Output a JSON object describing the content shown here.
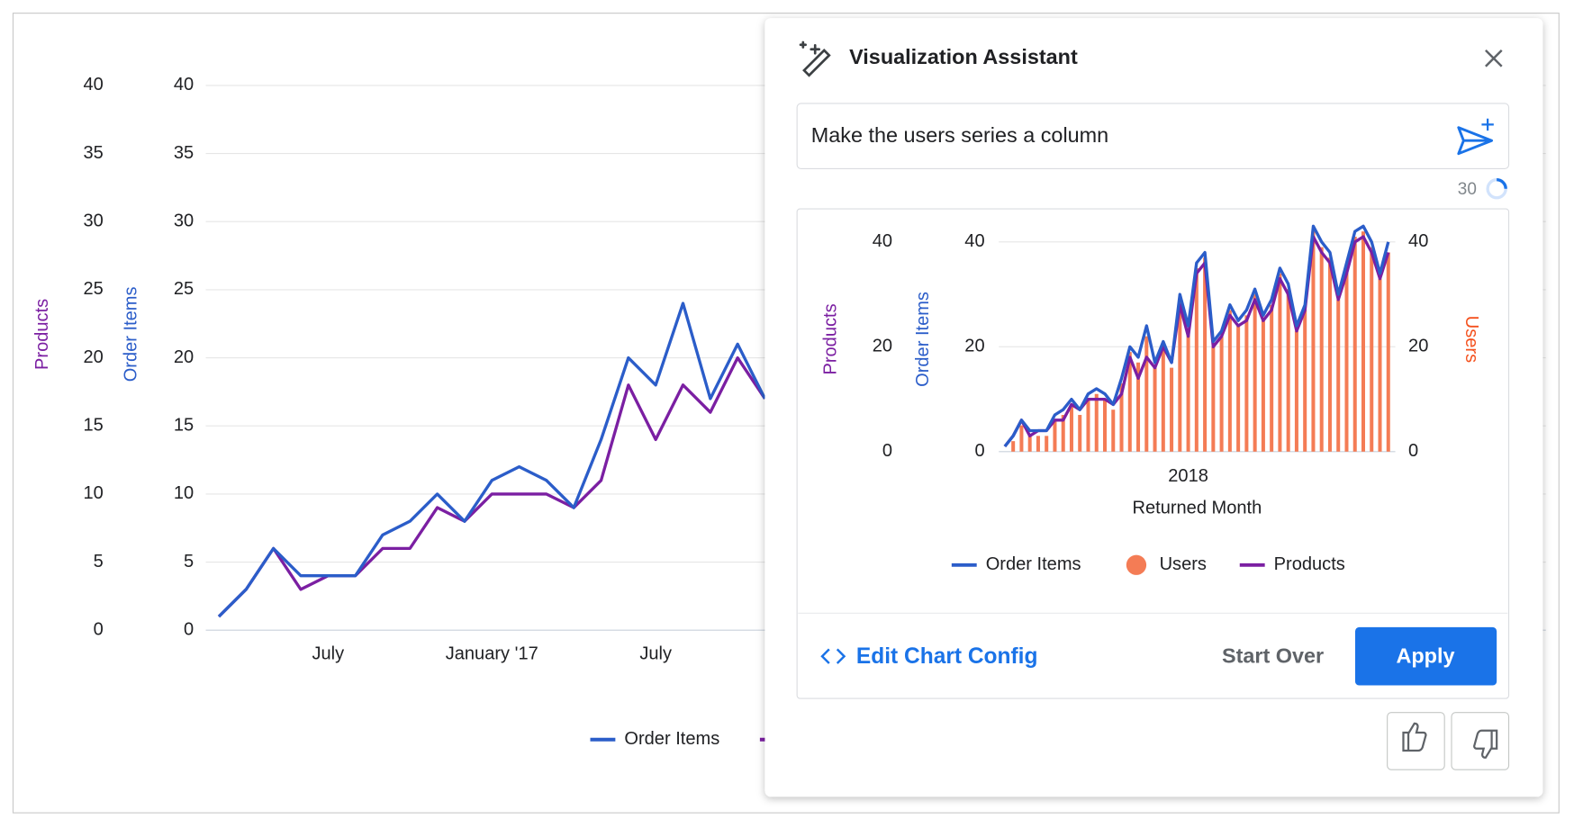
{
  "chart_data": [
    {
      "type": "line",
      "categories": [
        null,
        null,
        null,
        null,
        "July",
        null,
        null,
        null,
        null,
        null,
        "January '17",
        null,
        null,
        null,
        null,
        null,
        "July",
        null,
        null,
        null,
        null
      ],
      "y_label": "Order Items",
      "y2_label": "Products",
      "series": [
        {
          "name": "Order Items",
          "color": "#2b5dc9",
          "values": [
            1,
            3,
            6,
            4,
            4,
            4,
            7,
            8,
            10,
            8,
            11,
            12,
            11,
            9,
            14,
            20,
            18,
            24,
            17,
            21,
            17
          ]
        },
        {
          "name": "Products",
          "color": "#7b1fa2",
          "axis": "y2",
          "values": [
            1,
            3,
            6,
            3,
            4,
            4,
            6,
            6,
            9,
            8,
            10,
            10,
            10,
            9,
            11,
            18,
            14,
            18,
            16,
            20,
            17
          ]
        }
      ],
      "ylim": [
        0,
        40
      ],
      "yticks": [
        0,
        5,
        10,
        15,
        20,
        25,
        30,
        35,
        40
      ],
      "y2lim": [
        0,
        40
      ],
      "y2ticks": [
        0,
        5,
        10,
        15,
        20,
        25,
        30,
        35,
        40
      ],
      "grid": true
    },
    {
      "type": "combo",
      "x_label": "Returned Month",
      "categories": [
        null,
        null,
        null,
        null,
        null,
        null,
        null,
        null,
        null,
        null,
        null,
        null,
        null,
        null,
        null,
        null,
        null,
        null,
        null,
        null,
        null,
        null,
        "2018",
        null,
        null,
        null,
        null,
        null,
        null,
        null,
        null,
        null,
        null,
        null,
        null,
        null,
        null,
        null,
        null,
        null,
        null,
        null,
        null,
        null,
        null,
        null,
        null
      ],
      "y_label": "Order Items",
      "y2_label": "Users",
      "y3_label": "Products",
      "series": [
        {
          "name": "Order Items",
          "type": "line",
          "color": "#2b5dc9",
          "values": [
            1,
            3,
            6,
            4,
            4,
            4,
            7,
            8,
            10,
            8,
            11,
            12,
            11,
            9,
            14,
            20,
            18,
            24,
            17,
            21,
            17,
            30,
            24,
            36,
            38,
            21,
            23,
            28,
            25,
            27,
            31,
            26,
            29,
            35,
            32,
            24,
            28,
            43,
            40,
            38,
            30,
            36,
            42,
            43,
            40,
            34,
            40
          ]
        },
        {
          "name": "Users",
          "type": "bar",
          "color": "#f47c55",
          "axis": "y2",
          "values": [
            0,
            2,
            5,
            3,
            3,
            3,
            6,
            7,
            9,
            7,
            10,
            11,
            10,
            8,
            13,
            19,
            17,
            22,
            16,
            20,
            16,
            29,
            23,
            35,
            37,
            20,
            22,
            27,
            24,
            26,
            30,
            25,
            28,
            34,
            31,
            23,
            27,
            42,
            39,
            37,
            29,
            35,
            41,
            42,
            39,
            33,
            38
          ]
        },
        {
          "name": "Products",
          "type": "line",
          "color": "#7b1fa2",
          "axis": "y3",
          "values": [
            1,
            3,
            6,
            3,
            4,
            4,
            6,
            6,
            9,
            8,
            10,
            10,
            10,
            9,
            11,
            18,
            14,
            18,
            16,
            20,
            17,
            28,
            22,
            34,
            36,
            20,
            22,
            26,
            24,
            25,
            29,
            25,
            27,
            33,
            30,
            23,
            27,
            41,
            38,
            36,
            29,
            34,
            40,
            41,
            38,
            33,
            38
          ]
        }
      ],
      "ylim": [
        0,
        40
      ],
      "yticks": [
        0,
        20,
        40
      ],
      "y2lim": [
        0,
        40
      ],
      "y2ticks": [
        0,
        20,
        40
      ],
      "y3lim": [
        0,
        40
      ],
      "y3ticks": [
        0,
        20,
        40
      ],
      "grid": true
    }
  ],
  "panel": {
    "title": "Visualization Assistant",
    "prompt": "Make the users series a column",
    "counter": 30,
    "edit_config": "Edit Chart Config",
    "start_over": "Start Over",
    "apply": "Apply"
  }
}
